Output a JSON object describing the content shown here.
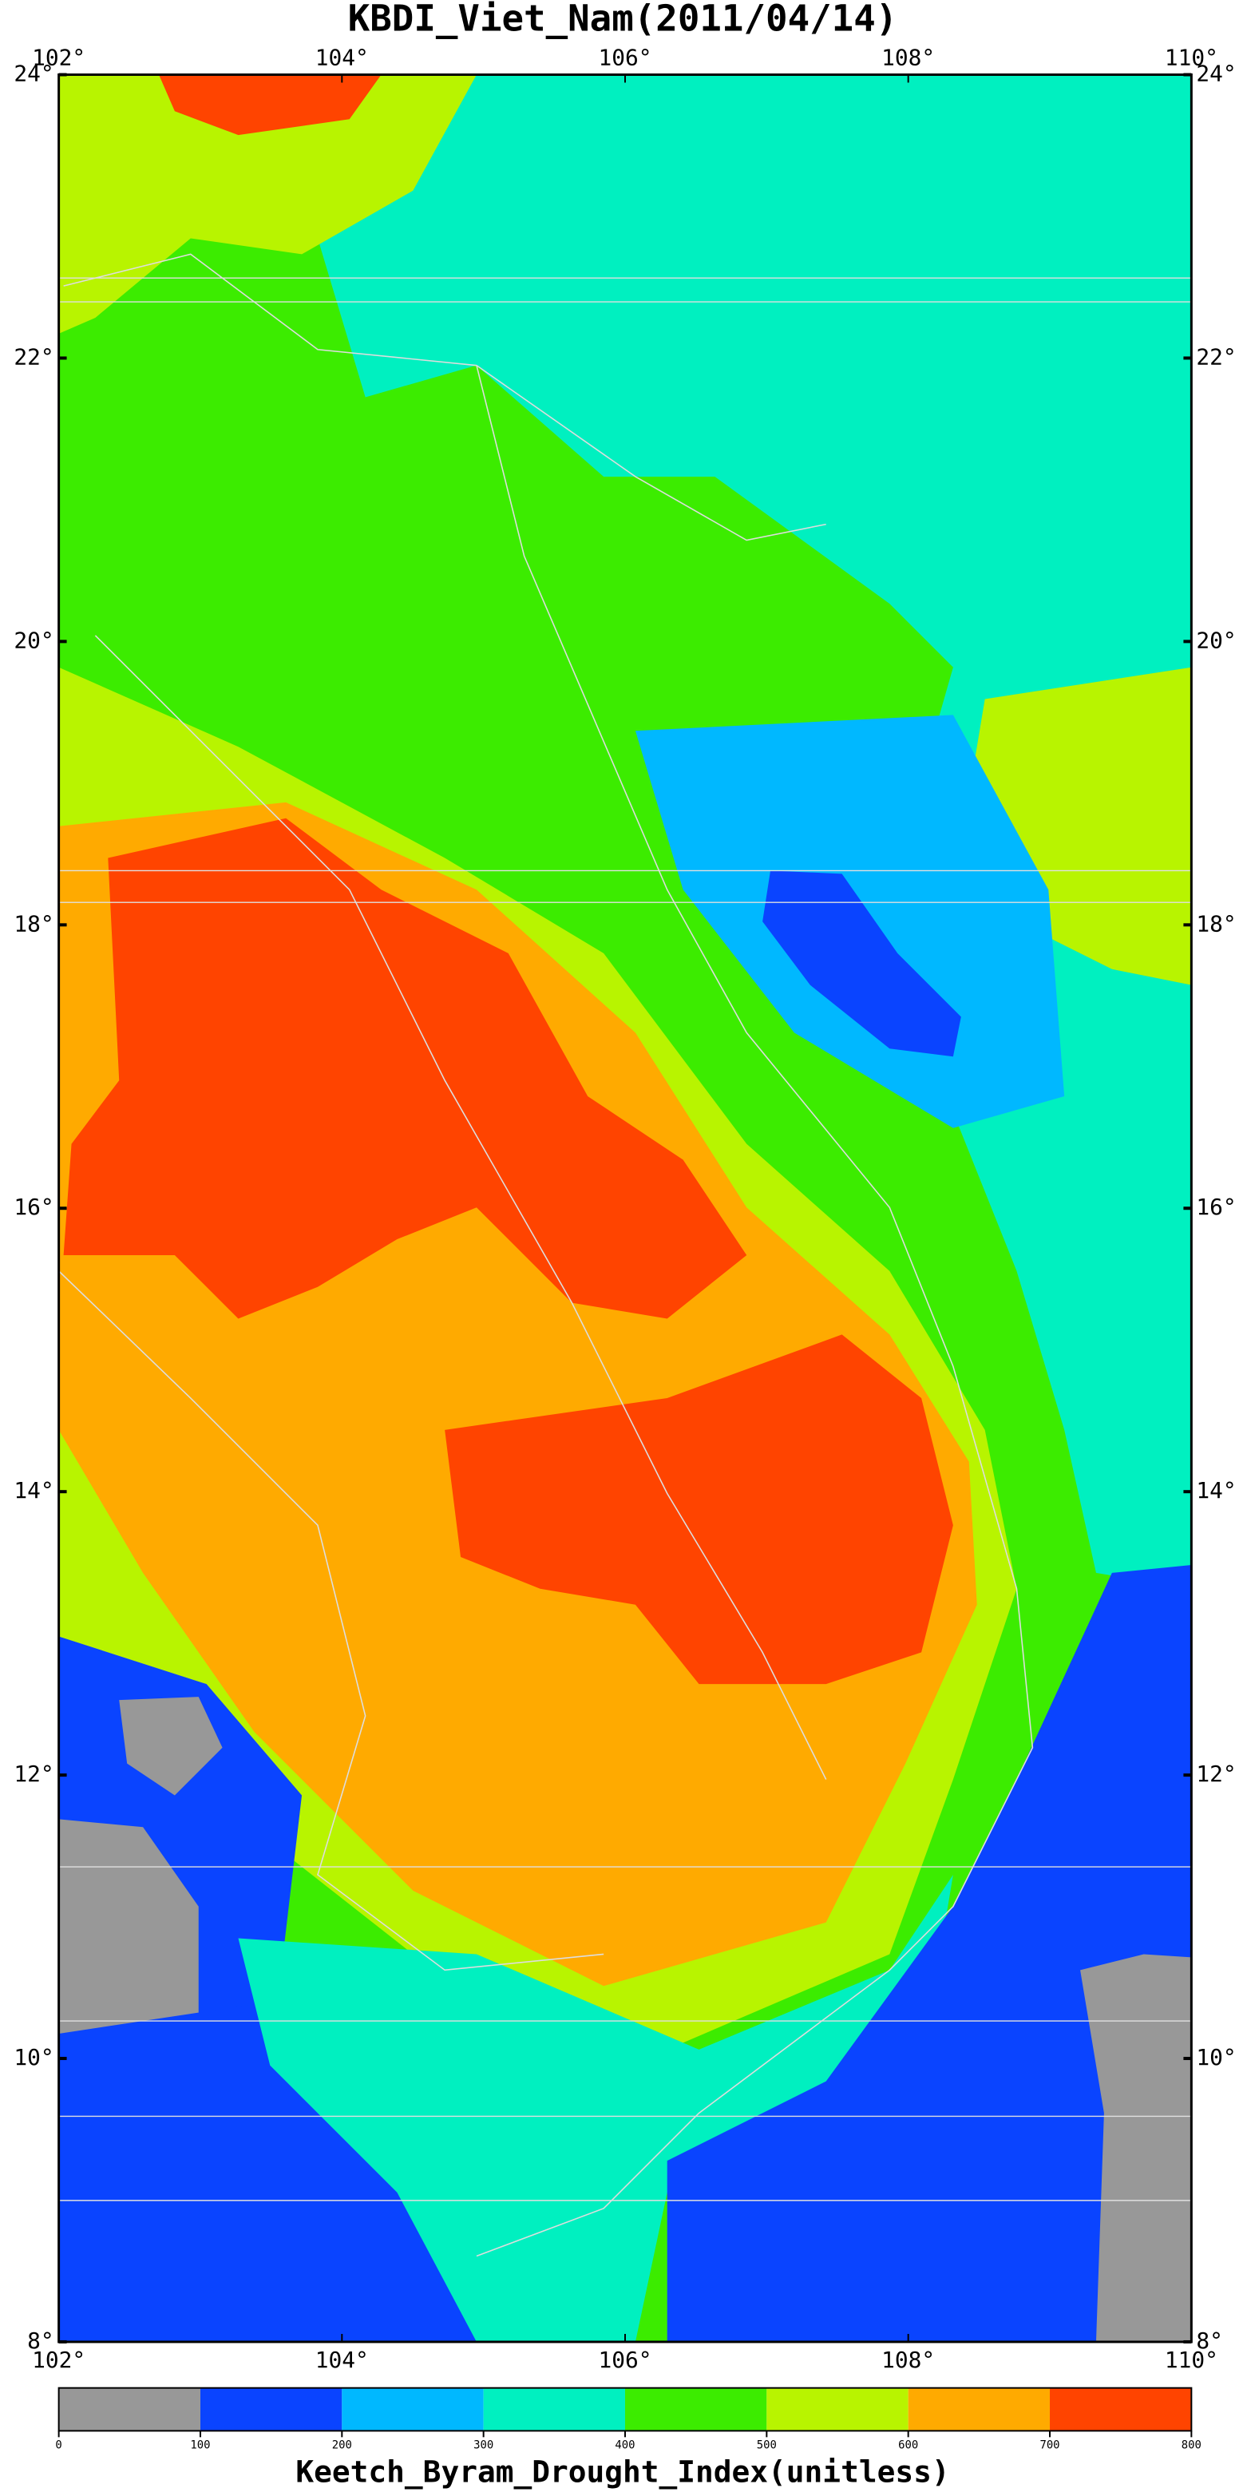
{
  "map": {
    "title": "KBDI_Viet_Nam(2011/04/14)",
    "xlim": [
      102,
      110
    ],
    "ylim": [
      8,
      24
    ],
    "xticks": [
      {
        "value": 102,
        "label": "102°"
      },
      {
        "value": 104,
        "label": "104°"
      },
      {
        "value": 106,
        "label": "106°"
      },
      {
        "value": 108,
        "label": "108°"
      },
      {
        "value": 110,
        "label": "110°"
      }
    ],
    "yticks": [
      {
        "value": 24,
        "label": "24°"
      },
      {
        "value": 22,
        "label": "22°"
      },
      {
        "value": 20,
        "label": "20°"
      },
      {
        "value": 18,
        "label": "18°"
      },
      {
        "value": 16,
        "label": "16°"
      },
      {
        "value": 14,
        "label": "14°"
      },
      {
        "value": 12,
        "label": "12°"
      },
      {
        "value": 10,
        "label": "10°"
      },
      {
        "value": 8,
        "label": "8°"
      }
    ],
    "colorbar": {
      "ticks": [
        0,
        100,
        200,
        300,
        400,
        500,
        600,
        700,
        800
      ],
      "colors": [
        "#989898",
        "#0a44ff",
        "#00b8ff",
        "#00f0c0",
        "#3cec00",
        "#b8f400",
        "#ffaa00",
        "#ff4400"
      ],
      "label": "Keetch_Byram_Drought_Index(unitless)"
    }
  }
}
